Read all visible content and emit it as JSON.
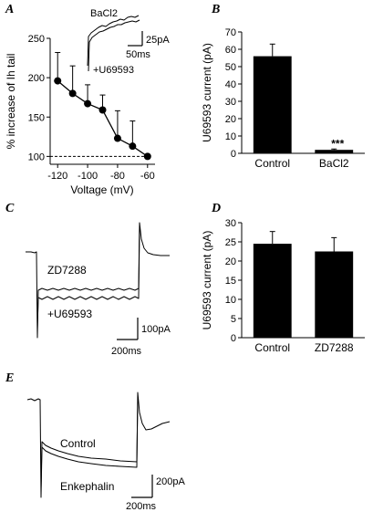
{
  "panels": {
    "A": "A",
    "B": "B",
    "C": "C",
    "D": "D",
    "E": "E"
  },
  "chart_data": [
    {
      "panel": "A",
      "type": "line",
      "ylabel": "% increase of Ih tail",
      "xlabel": "Voltage (mV)",
      "xlim": [
        -125,
        -55
      ],
      "ylim": [
        90,
        250
      ],
      "xticks": [
        -120,
        -100,
        -80,
        -60
      ],
      "yticks": [
        100,
        150,
        200,
        250
      ],
      "x": [
        -120,
        -110,
        -100,
        -90,
        -80,
        -70,
        -60
      ],
      "y": [
        196,
        180,
        167,
        159,
        123,
        113,
        100
      ],
      "yerr": [
        36,
        35,
        24,
        19,
        35,
        32,
        0
      ],
      "baseline": 100,
      "inset": {
        "labels": [
          "BaCl2",
          "+U69593"
        ],
        "scalebar_y": "25pA",
        "scalebar_x": "50ms"
      }
    },
    {
      "panel": "B",
      "type": "bar",
      "ylabel": "U69593 current (pA)",
      "categories": [
        "Control",
        "BaCl2"
      ],
      "values": [
        56,
        2
      ],
      "errors": [
        7,
        0.5
      ],
      "ylim": [
        0,
        70
      ],
      "yticks": [
        0,
        10,
        20,
        30,
        40,
        50,
        60,
        70
      ],
      "annotation": "***"
    },
    {
      "panel": "D",
      "type": "bar",
      "ylabel": "U69593 current (pA)",
      "categories": [
        "Control",
        "ZD7288"
      ],
      "values": [
        24.5,
        22.5
      ],
      "errors": [
        3.2,
        3.6
      ],
      "ylim": [
        0,
        30
      ],
      "yticks": [
        0,
        5,
        10,
        15,
        20,
        25,
        30
      ]
    }
  ],
  "panelC": {
    "labels": [
      "ZD7288",
      "+U69593"
    ],
    "scalebar_y": "100pA",
    "scalebar_x": "200ms"
  },
  "panelE": {
    "labels": [
      "Control",
      "Enkephalin"
    ],
    "scalebar_y": "200pA",
    "scalebar_x": "200ms"
  }
}
